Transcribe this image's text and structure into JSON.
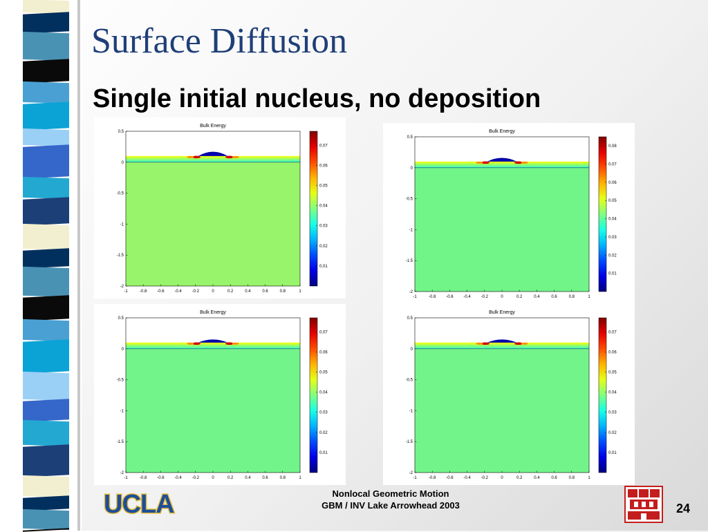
{
  "slide": {
    "title": "Surface Diffusion",
    "subtitle": "Single initial nucleus, no deposition",
    "page_number": "24"
  },
  "footer": {
    "line1": "Nonlocal Geometric Motion",
    "line2": "GBM / INV Lake Arrowhead 2003"
  },
  "logo": {
    "text": "UCLA",
    "text_color": "#1d4e9a",
    "outline_color": "#e3bb3a"
  },
  "crest": {
    "name": "institution-crest-icon",
    "colors": [
      "#c41d1d",
      "#ffffff"
    ]
  },
  "stripe_colors": [
    "#02305e",
    "#4aa0d2",
    "#3566c9",
    "#f2efd0",
    "#0a0a0a",
    "#9ad0f5",
    "#1c3f77",
    "#4a92b4",
    "#0ba3d6",
    "#23a8d2"
  ],
  "chart_data": [
    {
      "type": "heatmap",
      "title": "Bulk Energy",
      "xlabel": "",
      "ylabel": "",
      "xlim": [
        -1,
        1
      ],
      "ylim": [
        -2,
        0.5
      ],
      "x_ticks": [
        "-1",
        "-0.8",
        "-0.6",
        "-0.4",
        "-0.2",
        "0",
        "0.2",
        "0.4",
        "0.6",
        "0.8",
        "1"
      ],
      "y_ticks": [
        "0.5",
        "0",
        "-0.5",
        "-1",
        "-1.5",
        "-2"
      ],
      "colorbar_ticks": [
        "0.07",
        "0.06",
        "0.05",
        "0.04",
        "0.03",
        "0.02",
        "0.01"
      ],
      "colorbar_range": [
        0,
        0.077
      ],
      "film_top": 0.1,
      "nucleus_peak": 0.17,
      "bulk_value": 0.043,
      "bulk_color": "#98f46a"
    },
    {
      "type": "heatmap",
      "title": "Bulk Energy",
      "xlabel": "",
      "ylabel": "",
      "xlim": [
        -1,
        1
      ],
      "ylim": [
        -2,
        0.5
      ],
      "x_ticks": [
        "-1",
        "-0.8",
        "-0.6",
        "-0.4",
        "-0.2",
        "0",
        "0.2",
        "0.4",
        "0.6",
        "0.8",
        "1"
      ],
      "y_ticks": [
        "0.5",
        "0",
        "-0.5",
        "-1",
        "-1.5",
        "-2"
      ],
      "colorbar_ticks": [
        "0.08",
        "0.07",
        "0.06",
        "0.05",
        "0.04",
        "0.03",
        "0.02",
        "0.01"
      ],
      "colorbar_range": [
        0,
        0.085
      ],
      "film_top": 0.1,
      "nucleus_peak": 0.16,
      "bulk_value": 0.041,
      "bulk_color": "#71f488"
    },
    {
      "type": "heatmap",
      "title": "Bulk Energy",
      "xlabel": "",
      "ylabel": "",
      "xlim": [
        -1,
        1
      ],
      "ylim": [
        -2,
        0.5
      ],
      "x_ticks": [
        "-1",
        "-0.8",
        "-0.6",
        "-0.4",
        "-0.2",
        "0",
        "0.2",
        "0.4",
        "0.6",
        "0.8",
        "1"
      ],
      "y_ticks": [
        "0.5",
        "0",
        "-0.5",
        "-1",
        "-1.5",
        "-2"
      ],
      "colorbar_ticks": [
        "0.07",
        "0.06",
        "0.05",
        "0.04",
        "0.03",
        "0.02",
        "0.01"
      ],
      "colorbar_range": [
        0,
        0.077
      ],
      "film_top": 0.1,
      "nucleus_peak": 0.15,
      "bulk_value": 0.041,
      "bulk_color": "#73f48a"
    },
    {
      "type": "heatmap",
      "title": "Bulk Energy",
      "xlabel": "",
      "ylabel": "",
      "xlim": [
        -1,
        1
      ],
      "ylim": [
        -2,
        0.5
      ],
      "x_ticks": [
        "-1",
        "-0.8",
        "-0.6",
        "-0.4",
        "-0.2",
        "0",
        "0.2",
        "0.4",
        "0.6",
        "0.8",
        "1"
      ],
      "y_ticks": [
        "0.5",
        "0",
        "-0.5",
        "-1",
        "-1.5",
        "-2"
      ],
      "colorbar_ticks": [
        "0.07",
        "0.06",
        "0.05",
        "0.04",
        "0.03",
        "0.02",
        "0.01"
      ],
      "colorbar_range": [
        0,
        0.077
      ],
      "film_top": 0.1,
      "nucleus_peak": 0.15,
      "bulk_value": 0.041,
      "bulk_color": "#73f48a"
    }
  ]
}
